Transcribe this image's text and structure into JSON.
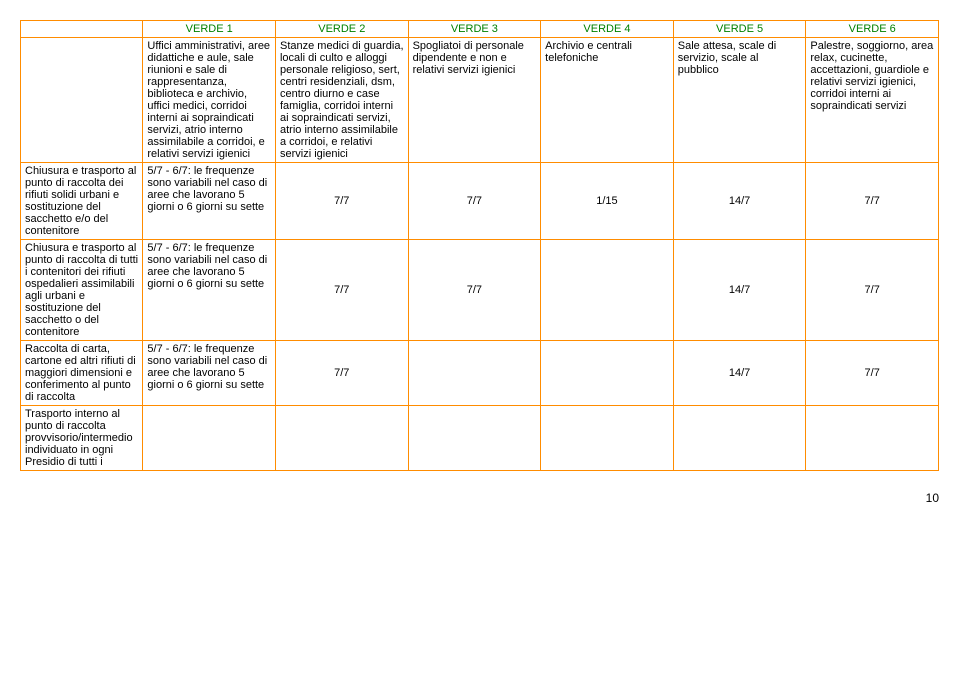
{
  "headers": [
    "VERDE 1",
    "VERDE 2",
    "VERDE 3",
    "VERDE 4",
    "VERDE 5",
    "VERDE 6"
  ],
  "descRow": {
    "label": "",
    "cells": [
      "Uffici amministrativi, aree didattiche e aule, sale riunioni e sale di rappresentanza, biblioteca e archivio, uffici medici, corridoi interni ai sopraindicati servizi, atrio interno assimilabile a corridoi, e relativi servizi igienici",
      "Stanze medici di guardia, locali di culto e alloggi personale religioso, sert, centri residenziali, dsm, centro diurno e case famiglia, corridoi interni ai sopraindicati servizi, atrio interno assimilabile a corridoi, e relativi servizi igienici",
      "Spogliatoi di personale dipendente e non e relativi servizi igienici",
      "Archivio e centrali telefoniche",
      "Sale attesa, scale di servizio, scale al pubblico",
      "Palestre, soggiorno, area relax, cucinette, accettazioni, guardiole e relativi servizi igienici, corridoi interni ai sopraindicati servizi"
    ]
  },
  "rows": [
    {
      "label": "Chiusura e trasporto al punto di raccolta dei rifiuti solidi urbani e sostituzione del sacchetto e/o del contenitore",
      "cells": [
        "5/7 - 6/7: le frequenze sono variabili nel caso di aree che lavorano 5 giorni o 6 giorni su sette",
        "7/7",
        "7/7",
        "1/15",
        "14/7",
        "7/7"
      ]
    },
    {
      "label": "Chiusura e trasporto al punto di raccolta di tutti i contenitori dei rifiuti ospedalieri assimilabili agli urbani e sostituzione del sacchetto o del contenitore",
      "cells": [
        "5/7 - 6/7: le frequenze sono variabili nel caso di aree che lavorano 5 giorni o 6 giorni su sette",
        "7/7",
        "7/7",
        "",
        "14/7",
        "7/7"
      ]
    },
    {
      "label": "Raccolta di carta, cartone ed altri rifiuti di maggiori dimensioni e conferimento al punto di raccolta",
      "cells": [
        "5/7 - 6/7: le frequenze sono variabili nel caso di aree che lavorano 5 giorni o 6 giorni su sette",
        "7/7",
        "",
        "",
        "14/7",
        "7/7"
      ]
    },
    {
      "label": "Trasporto interno al punto di raccolta provvisorio/intermedio individuato in ogni Presidio di tutti i",
      "cells": [
        "",
        "",
        "",
        "",
        "",
        ""
      ]
    }
  ],
  "pageNumber": "10",
  "colors": {
    "border": "#ff8c00",
    "headerText": "#008000"
  }
}
